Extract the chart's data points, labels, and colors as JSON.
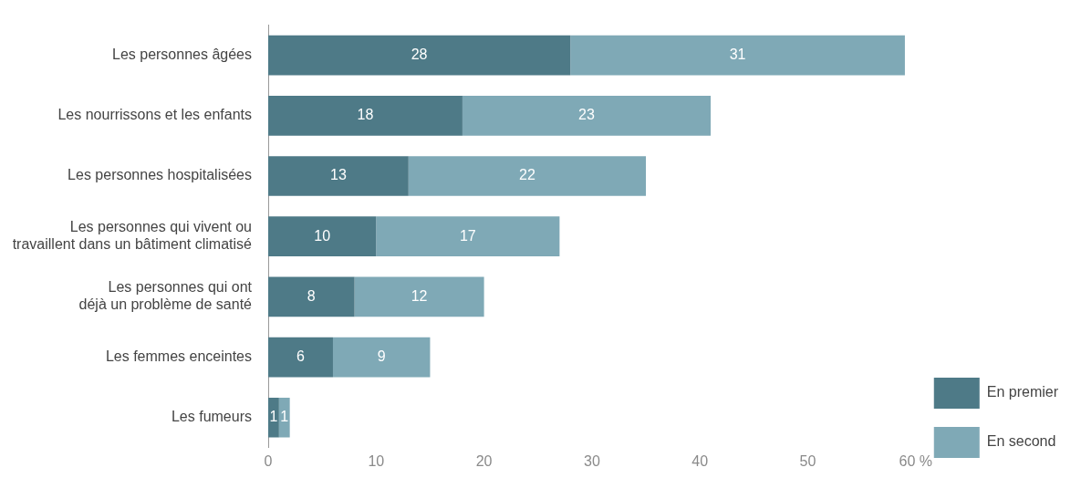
{
  "chart_data": {
    "type": "bar",
    "orientation": "horizontal",
    "stacked": true,
    "data_labels": true,
    "legend": "bottom right",
    "grid": false,
    "categories": [
      "Les personnes âgées",
      "Les nourrissons et les enfants",
      "Les personnes hospitalisées",
      "Les personnes qui vivent ou travaillent dans un bâtiment climatisé",
      "Les personnes qui ont déjà un problème de santé",
      "Les femmes enceintes",
      "Les fumeurs"
    ],
    "series": [
      {
        "name": "En premier",
        "color": "#4e7a87",
        "values": [
          28,
          18,
          13,
          10,
          8,
          6,
          1
        ]
      },
      {
        "name": "En second",
        "color": "#7fa9b6",
        "values": [
          31,
          23,
          22,
          17,
          12,
          9,
          1
        ]
      }
    ],
    "xlim": [
      0,
      60
    ],
    "xticks": [
      0,
      10,
      20,
      30,
      40,
      50,
      {
        "value": 60,
        "label": "60 %"
      }
    ]
  }
}
